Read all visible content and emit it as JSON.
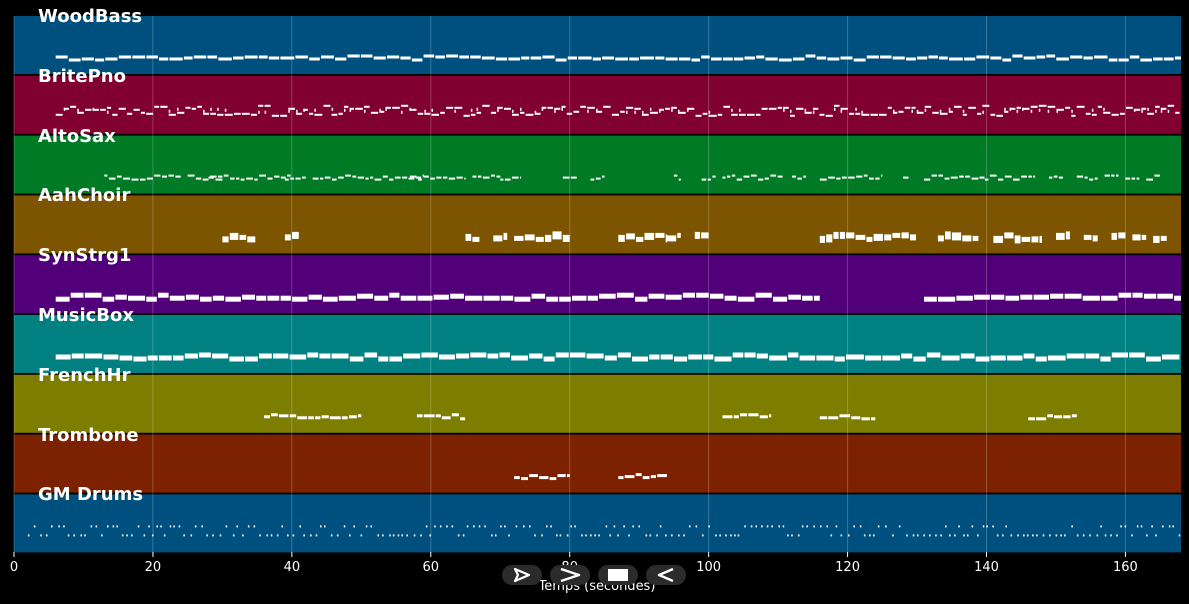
{
  "chart_data": {
    "type": "piano-roll",
    "xlabel": "Temps (secondes)",
    "xlim": [
      0,
      168
    ],
    "x_ticks": [
      0,
      20,
      40,
      60,
      80,
      100,
      120,
      140,
      160
    ],
    "grid": true,
    "tracks": [
      {
        "name": "WoodBass",
        "color": "#00507f",
        "segments": [
          [
            6,
            168
          ]
        ],
        "pattern": "bass"
      },
      {
        "name": "BritePno",
        "color": "#800030",
        "segments": [
          [
            6,
            168
          ]
        ],
        "pattern": "dense"
      },
      {
        "name": "AltoSax",
        "color": "#007a25",
        "segments": [
          [
            13,
            24
          ],
          [
            25,
            30
          ],
          [
            28,
            40
          ],
          [
            39,
            42
          ],
          [
            43,
            54
          ],
          [
            54,
            59
          ],
          [
            57,
            65
          ],
          [
            66,
            70
          ],
          [
            70,
            73
          ],
          [
            79,
            81
          ],
          [
            83,
            85
          ],
          [
            95,
            96
          ],
          [
            99,
            101
          ],
          [
            102,
            111
          ],
          [
            112,
            114
          ],
          [
            116,
            125
          ],
          [
            128,
            129
          ],
          [
            131,
            140
          ],
          [
            139,
            147
          ],
          [
            149,
            151
          ],
          [
            153,
            156
          ],
          [
            157,
            159
          ],
          [
            160,
            162
          ],
          [
            163,
            165
          ]
        ],
        "pattern": "small"
      },
      {
        "name": "AahChoir",
        "color": "#7d5400",
        "segments": [
          [
            30,
            35
          ],
          [
            39,
            41
          ],
          [
            65,
            67
          ],
          [
            69,
            71
          ],
          [
            72,
            80
          ],
          [
            87,
            94
          ],
          [
            94,
            96
          ],
          [
            98,
            100
          ],
          [
            116,
            130
          ],
          [
            133,
            139
          ],
          [
            141,
            148
          ],
          [
            150,
            152
          ],
          [
            154,
            156
          ],
          [
            158,
            160
          ],
          [
            161,
            163
          ],
          [
            164,
            166
          ]
        ],
        "pattern": "block"
      },
      {
        "name": "SynStrg1",
        "color": "#52007a",
        "segments": [
          [
            6,
            116
          ],
          [
            131,
            168
          ]
        ],
        "pattern": "wide"
      },
      {
        "name": "MusicBox",
        "color": "#008080",
        "segments": [
          [
            6,
            168
          ]
        ],
        "pattern": "wide"
      },
      {
        "name": "FrenchHr",
        "color": "#7d7d00",
        "segments": [
          [
            36,
            50
          ],
          [
            58,
            65
          ],
          [
            102,
            109
          ],
          [
            116,
            124
          ],
          [
            146,
            153
          ]
        ],
        "pattern": "mid"
      },
      {
        "name": "Trombone",
        "color": "#7d2200",
        "segments": [
          [
            72,
            80
          ],
          [
            87,
            94
          ]
        ],
        "pattern": "mid"
      },
      {
        "name": "GM Drums",
        "color": "#00507f",
        "segments": [
          [
            2,
            168
          ]
        ],
        "pattern": "drums"
      }
    ]
  },
  "transport": {
    "play_icon": "play-outline-icon",
    "forward_icon": "fast-forward-icon",
    "stop_icon": "stop-icon",
    "rewind_icon": "rewind-icon"
  }
}
